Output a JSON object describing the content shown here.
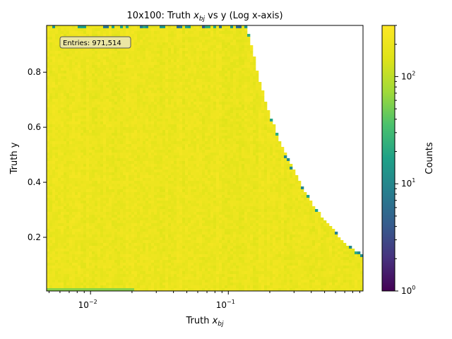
{
  "chart_data": {
    "type": "heatmap",
    "title": "10x100: Truth x_bj vs y (Log x-axis)",
    "title_parts": {
      "prefix": "10x100: Truth ",
      "var": "x",
      "sub": "bj",
      "suffix": " vs y (Log x-axis)"
    },
    "xlabel_parts": {
      "prefix": "Truth ",
      "var": "x",
      "sub": "bj"
    },
    "ylabel": "Truth y",
    "colorbar_label": "Counts",
    "x_scale": "log",
    "x_range": [
      0.0048,
      0.95
    ],
    "y_range": [
      0.005,
      0.97
    ],
    "color_scale": "log",
    "color_range": [
      1,
      300
    ],
    "colormap": "viridis",
    "x_ticks": [
      {
        "value": 0.01,
        "base": "10",
        "exp": "−2"
      },
      {
        "value": 0.1,
        "base": "10",
        "exp": "−1"
      }
    ],
    "y_ticks": [
      {
        "value": 0.2,
        "label": "0.2"
      },
      {
        "value": 0.4,
        "label": "0.4"
      },
      {
        "value": 0.6,
        "label": "0.6"
      },
      {
        "value": 0.8,
        "label": "0.8"
      }
    ],
    "colorbar_ticks": [
      {
        "value": 1,
        "base": "10",
        "exp": "0"
      },
      {
        "value": 10,
        "base": "10",
        "exp": "1"
      },
      {
        "value": 100,
        "base": "10",
        "exp": "2"
      }
    ],
    "boundary": [
      [
        0.135,
        0.97
      ],
      [
        0.15,
        0.88
      ],
      [
        0.17,
        0.76
      ],
      [
        0.2,
        0.65
      ],
      [
        0.25,
        0.52
      ],
      [
        0.3,
        0.44
      ],
      [
        0.4,
        0.33
      ],
      [
        0.5,
        0.26
      ],
      [
        0.6,
        0.22
      ],
      [
        0.7,
        0.18
      ],
      [
        0.8,
        0.16
      ],
      [
        0.95,
        0.14
      ]
    ],
    "annotation": "Entries: 971,514",
    "low_y_band": {
      "y_max": 0.02,
      "x_start": 0.0048,
      "x_end": 0.021,
      "counts": 60
    }
  }
}
